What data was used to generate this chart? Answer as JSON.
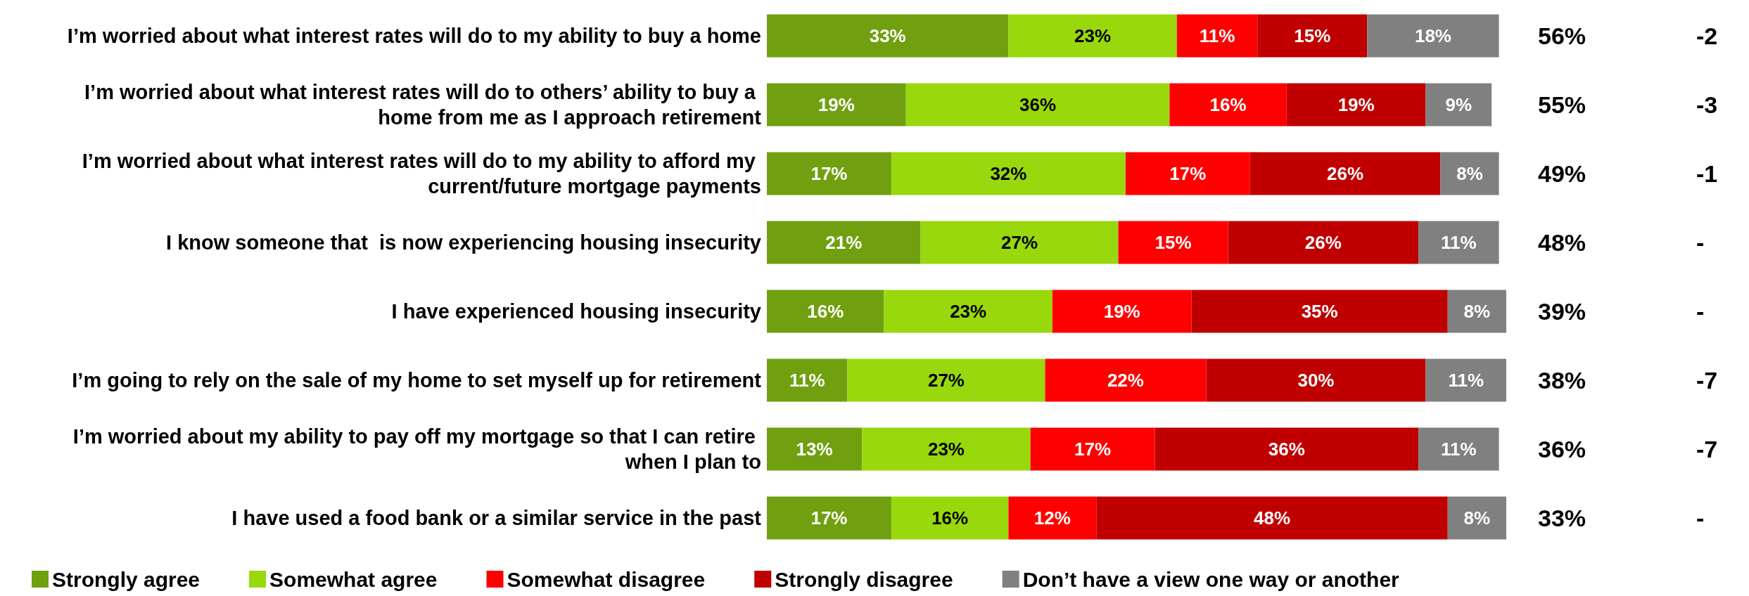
{
  "chart_data": {
    "type": "bar",
    "orientation": "horizontal",
    "stacked": true,
    "legend": "bottom",
    "categories": [
      "I’m worried about what interest rates will do to my ability to buy a home",
      "I’m worried about what interest rates will do to others’ ability to buy a home from me as I approach retirement",
      "I’m worried about what interest rates will do to my ability to afford my current/future mortgage payments",
      "I know someone that  is now experiencing housing insecurity",
      "I have experienced housing insecurity",
      "I’m going to rely on the sale of my home to set myself up for retirement",
      "I’m worried about my ability to pay off my mortgage so that I can retire when I plan to",
      "I have used a food bank or a similar service in the past"
    ],
    "series": [
      {
        "name": "Strongly agree",
        "color": "#70a00f",
        "values": [
          33,
          19,
          17,
          21,
          16,
          11,
          13,
          17
        ],
        "value_labels": [
          "33%",
          "19%",
          "17%",
          "21%",
          "16%",
          "11%",
          "13%",
          "17%"
        ]
      },
      {
        "name": "Somewhat agree",
        "color": "#99d80c",
        "values": [
          23,
          36,
          32,
          27,
          23,
          27,
          23,
          16
        ],
        "value_labels": [
          "23%",
          "36%",
          "32%",
          "27%",
          "23%",
          "27%",
          "23%",
          "16%"
        ]
      },
      {
        "name": "Somewhat disagree",
        "color": "#ff0000",
        "values": [
          11,
          16,
          17,
          15,
          19,
          22,
          17,
          12
        ],
        "value_labels": [
          "11%",
          "16%",
          "17%",
          "15%",
          "19%",
          "22%",
          "17%",
          "12%"
        ]
      },
      {
        "name": "Strongly disagree",
        "color": "#c00000",
        "values": [
          15,
          19,
          26,
          26,
          35,
          30,
          36,
          48
        ],
        "value_labels": [
          "15%",
          "19%",
          "26%",
          "26%",
          "35%",
          "30%",
          "36%",
          "48%"
        ]
      },
      {
        "name": "Don’t have a view one way or another",
        "color": "#808080",
        "values": [
          18,
          9,
          8,
          11,
          8,
          11,
          11,
          8
        ],
        "value_labels": [
          "18%",
          "9%",
          "8%",
          "11%",
          "8%",
          "11%",
          "11%",
          "8%"
        ]
      }
    ],
    "annotations": [
      "56%",
      "55%",
      "49%",
      "48%",
      "39%",
      "38%",
      "36%",
      "33%",
      "-2",
      "-3",
      "-1",
      "-",
      "-",
      "-7",
      "-7",
      "-"
    ]
  }
}
